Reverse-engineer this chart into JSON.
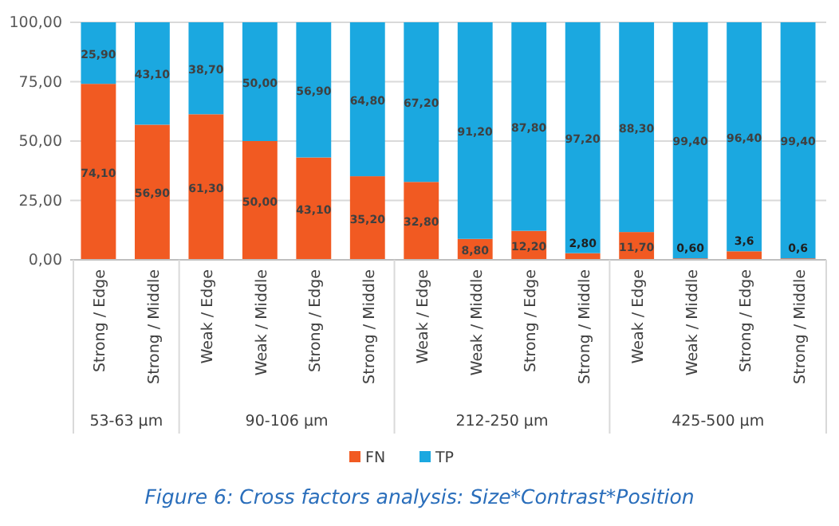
{
  "chart_data": {
    "type": "bar",
    "stacked": true,
    "categories": [
      "Strong / Edge",
      "Strong / Middle",
      "Weak / Edge",
      "Weak / Middle",
      "Strong / Edge",
      "Strong / Middle",
      "Weak / Edge",
      "Weak / Middle",
      "Strong / Edge",
      "Strong / Middle",
      "Weak / Edge",
      "Weak / Middle",
      "Strong / Edge",
      "Strong / Middle"
    ],
    "series": [
      {
        "name": "FN",
        "color": "#f15a22",
        "values": [
          74.1,
          56.9,
          61.3,
          50.0,
          43.1,
          35.2,
          32.8,
          8.8,
          12.2,
          2.8,
          11.7,
          0.6,
          3.6,
          0.6
        ],
        "value_labels": [
          "74,10",
          "56,90",
          "61,30",
          "50,00",
          "43,10",
          "35,20",
          "32,80",
          "8,80",
          "12,20",
          "2,80",
          "11,70",
          "0,60",
          "3,6",
          "0,6"
        ]
      },
      {
        "name": "TP",
        "color": "#1ba8e0",
        "values": [
          25.9,
          43.1,
          38.7,
          50.0,
          56.9,
          64.8,
          67.2,
          91.2,
          87.8,
          97.2,
          88.3,
          99.4,
          96.4,
          99.4
        ],
        "value_labels": [
          "25,90",
          "43,10",
          "38,70",
          "50,00",
          "56,90",
          "64,80",
          "67,20",
          "91,20",
          "87,80",
          "97,20",
          "88,30",
          "99,40",
          "96,40",
          "99,40"
        ]
      }
    ],
    "ylim": [
      0,
      100
    ],
    "yticks": [
      {
        "value": 0,
        "label": "0,00"
      },
      {
        "value": 25,
        "label": "25,00"
      },
      {
        "value": 50,
        "label": "50,00"
      },
      {
        "value": 75,
        "label": "75,00"
      },
      {
        "value": 100,
        "label": "100,00"
      }
    ],
    "grid": "y",
    "legend": "bottom",
    "annotations": [
      "53-63 µm",
      "90-106 µm",
      "212-250 µm",
      "425-500 µm",
      "Figure 6: Cross factors analysis: Size*Contrast*Position"
    ]
  }
}
